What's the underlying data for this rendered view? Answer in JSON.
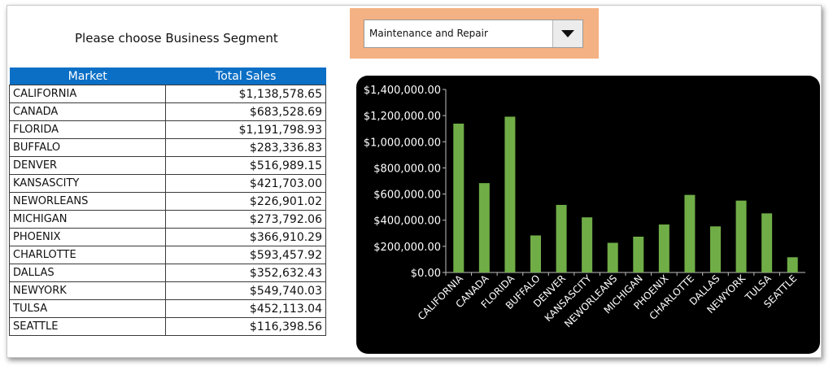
{
  "prompt": "Please choose Business Segment",
  "segment_select": {
    "value": "Maintenance and Repair",
    "accent": "#f4b183"
  },
  "table": {
    "headers": [
      "Market",
      "Total Sales"
    ],
    "header_color": "#0b6fc6",
    "rows": [
      [
        "CALIFORNIA",
        "$1,138,578.65"
      ],
      [
        "CANADA",
        "$683,528.69"
      ],
      [
        "FLORIDA",
        "$1,191,798.93"
      ],
      [
        "BUFFALO",
        "$283,336.83"
      ],
      [
        "DENVER",
        "$516,989.15"
      ],
      [
        "KANSASCITY",
        "$421,703.00"
      ],
      [
        "NEWORLEANS",
        "$226,901.02"
      ],
      [
        "MICHIGAN",
        "$273,792.06"
      ],
      [
        "PHOENIX",
        "$366,910.29"
      ],
      [
        "CHARLOTTE",
        "$593,457.92"
      ],
      [
        "DALLAS",
        "$352,632.43"
      ],
      [
        "NEWYORK",
        "$549,740.03"
      ],
      [
        "TULSA",
        "$452,113.04"
      ],
      [
        "SEATTLE",
        "$116,398.56"
      ]
    ]
  },
  "chart_data": {
    "type": "bar",
    "categories": [
      "CALIFORNIA",
      "CANADA",
      "FLORIDA",
      "BUFFALO",
      "DENVER",
      "KANSASCITY",
      "NEWORLEANS",
      "MICHIGAN",
      "PHOENIX",
      "CHARLOTTE",
      "DALLAS",
      "NEWYORK",
      "TULSA",
      "SEATTLE"
    ],
    "values": [
      1138578.65,
      683528.69,
      1191798.93,
      283336.83,
      516989.15,
      421703.0,
      226901.02,
      273792.06,
      366910.29,
      593457.92,
      352632.43,
      549740.03,
      452113.04,
      116398.56
    ],
    "ylim": [
      0,
      1400000
    ],
    "yticks": [
      "$0.00",
      "$200,000.00",
      "$400,000.00",
      "$600,000.00",
      "$800,000.00",
      "$1,000,000.00",
      "$1,200,000.00",
      "$1,400,000.00"
    ],
    "grid": false,
    "background": "#000000",
    "bar_color": "#70ad47",
    "text_color": "#ffffff"
  }
}
